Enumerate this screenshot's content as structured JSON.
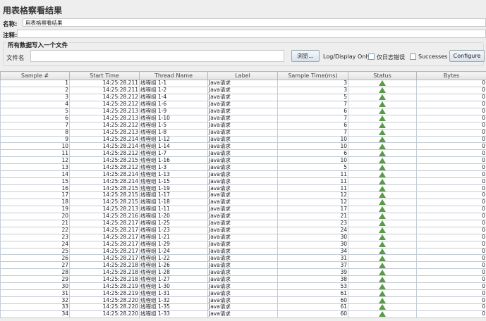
{
  "title": "用表格察看结果",
  "name_label": "名称:",
  "name_value": "用表格察看结果",
  "comment_label": "注释:",
  "comment_value": "",
  "file_group_title": "所有数据写入一个文件",
  "file_label": "文件名",
  "file_value": "",
  "browse_label": "浏览...",
  "log_display_label": "Log/Display Only:",
  "errors_only_label": "仅日志错误",
  "errors_only_checked": false,
  "successes_label": "Successes",
  "successes_checked": false,
  "configure_label": "Configure",
  "columns": [
    "Sample #",
    "Start Time",
    "Thread Name",
    "Label",
    "Sample Time(ms)",
    "Status",
    "Bytes"
  ],
  "status_icon": "success-triangle-check-icon",
  "status_color": "#5a9a4a",
  "rows": [
    [
      1,
      "14:25:28.211",
      "线程组 1-1",
      "Java请求",
      3,
      0
    ],
    [
      2,
      "14:25:28.211",
      "线程组 1-2",
      "Java请求",
      3,
      0
    ],
    [
      3,
      "14:25:28.212",
      "线程组 1-4",
      "Java请求",
      5,
      0
    ],
    [
      4,
      "14:25:28.212",
      "线程组 1-6",
      "Java请求",
      7,
      0
    ],
    [
      5,
      "14:25:28.213",
      "线程组 1-9",
      "Java请求",
      6,
      0
    ],
    [
      6,
      "14:25:28.213",
      "线程组 1-10",
      "Java请求",
      7,
      0
    ],
    [
      7,
      "14:25:28.212",
      "线程组 1-5",
      "Java请求",
      6,
      0
    ],
    [
      8,
      "14:25:28.213",
      "线程组 1-8",
      "Java请求",
      7,
      0
    ],
    [
      9,
      "14:25:28.214",
      "线程组 1-12",
      "Java请求",
      10,
      0
    ],
    [
      10,
      "14:25:28.214",
      "线程组 1-14",
      "Java请求",
      10,
      0
    ],
    [
      11,
      "14:25:28.212",
      "线程组 1-7",
      "Java请求",
      6,
      0
    ],
    [
      12,
      "14:25:28.215",
      "线程组 1-16",
      "Java请求",
      10,
      0
    ],
    [
      13,
      "14:25:28.212",
      "线程组 1-3",
      "Java请求",
      5,
      0
    ],
    [
      14,
      "14:25:28.214",
      "线程组 1-13",
      "Java请求",
      11,
      0
    ],
    [
      15,
      "14:25:28.214",
      "线程组 1-15",
      "Java请求",
      11,
      0
    ],
    [
      16,
      "14:25:28.215",
      "线程组 1-19",
      "Java请求",
      11,
      0
    ],
    [
      17,
      "14:25:28.215",
      "线程组 1-17",
      "Java请求",
      12,
      0
    ],
    [
      18,
      "14:25:28.215",
      "线程组 1-18",
      "Java请求",
      12,
      0
    ],
    [
      19,
      "14:25:28.213",
      "线程组 1-11",
      "Java请求",
      17,
      0
    ],
    [
      20,
      "14:25:28.216",
      "线程组 1-20",
      "Java请求",
      21,
      0
    ],
    [
      21,
      "14:25:28.217",
      "线程组 1-25",
      "Java请求",
      23,
      0
    ],
    [
      22,
      "14:25:28.217",
      "线程组 1-23",
      "Java请求",
      24,
      0
    ],
    [
      23,
      "14:25:28.217",
      "线程组 1-21",
      "Java请求",
      30,
      0
    ],
    [
      24,
      "14:25:28.217",
      "线程组 1-29",
      "Java请求",
      30,
      0
    ],
    [
      25,
      "14:25:28.217",
      "线程组 1-24",
      "Java请求",
      34,
      0
    ],
    [
      26,
      "14:25:28.217",
      "线程组 1-22",
      "Java请求",
      31,
      0
    ],
    [
      27,
      "14:25:28.218",
      "线程组 1-26",
      "Java请求",
      37,
      0
    ],
    [
      28,
      "14:25:28.218",
      "线程组 1-28",
      "Java请求",
      39,
      0
    ],
    [
      29,
      "14:25:28.218",
      "线程组 1-27",
      "Java请求",
      38,
      0
    ],
    [
      30,
      "14:25:28.219",
      "线程组 1-30",
      "Java请求",
      53,
      0
    ],
    [
      31,
      "14:25:28.219",
      "线程组 1-31",
      "Java请求",
      61,
      0
    ],
    [
      32,
      "14:25:28.220",
      "线程组 1-32",
      "Java请求",
      60,
      0
    ],
    [
      33,
      "14:25:28.220",
      "线程组 1-35",
      "Java请求",
      61,
      0
    ],
    [
      34,
      "14:25:28.220",
      "线程组 1-33",
      "Java请求",
      60,
      0
    ]
  ]
}
